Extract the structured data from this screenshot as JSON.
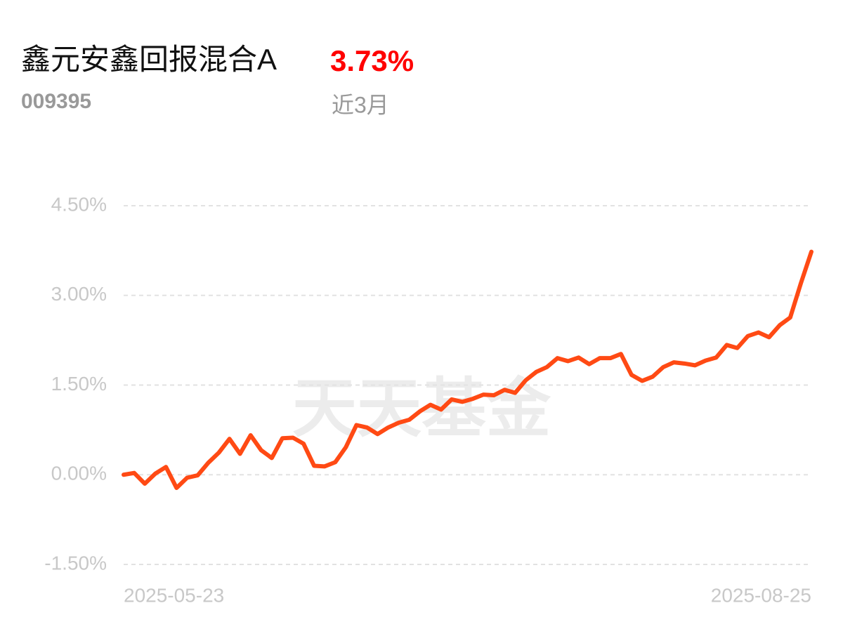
{
  "chart_data": {
    "type": "line",
    "title": "鑫元安鑫回报混合A",
    "return_label": "3.73%",
    "fund_code": "009395",
    "period": "近3月",
    "watermark": "天天基金",
    "categories": [
      "2025-05-23",
      null,
      null,
      null,
      null,
      null,
      null,
      null,
      null,
      null,
      null,
      null,
      null,
      null,
      null,
      null,
      null,
      null,
      null,
      null,
      null,
      null,
      null,
      null,
      null,
      null,
      null,
      null,
      null,
      null,
      null,
      null,
      null,
      null,
      null,
      null,
      null,
      null,
      null,
      null,
      null,
      null,
      null,
      null,
      null,
      null,
      null,
      null,
      null,
      null,
      null,
      null,
      null,
      null,
      null,
      null,
      null,
      null,
      null,
      null,
      null,
      null,
      null,
      null,
      null,
      "2025-08-25"
    ],
    "series": [
      {
        "name": "鑫元安鑫回报混合A",
        "color": "#ff4a14",
        "values": [
          0,
          0.03,
          -0.15,
          0.02,
          0.13,
          -0.22,
          -0.05,
          -0.01,
          0.2,
          0.37,
          0.6,
          0.35,
          0.66,
          0.41,
          0.28,
          0.61,
          0.62,
          0.52,
          0.15,
          0.14,
          0.21,
          0.46,
          0.83,
          0.79,
          0.68,
          0.79,
          0.87,
          0.92,
          1.06,
          1.17,
          1.09,
          1.26,
          1.22,
          1.27,
          1.34,
          1.33,
          1.42,
          1.37,
          1.58,
          1.72,
          1.8,
          1.95,
          1.9,
          1.96,
          1.85,
          1.95,
          1.95,
          2.02,
          1.67,
          1.57,
          1.64,
          1.8,
          1.88,
          1.86,
          1.83,
          1.91,
          1.96,
          2.17,
          2.12,
          2.32,
          2.38,
          2.3,
          2.5,
          2.63,
          3.2,
          3.73
        ]
      }
    ],
    "ylim": [
      -1.5,
      4.5
    ],
    "yticks": [
      {
        "value": 4.5,
        "label": "4.50%"
      },
      {
        "value": 3,
        "label": "3.00%"
      },
      {
        "value": 1.5,
        "label": "1.50%"
      },
      {
        "value": 0,
        "label": "0.00%"
      },
      {
        "value": -1.5,
        "label": "-1.50%"
      }
    ],
    "grid": true
  }
}
